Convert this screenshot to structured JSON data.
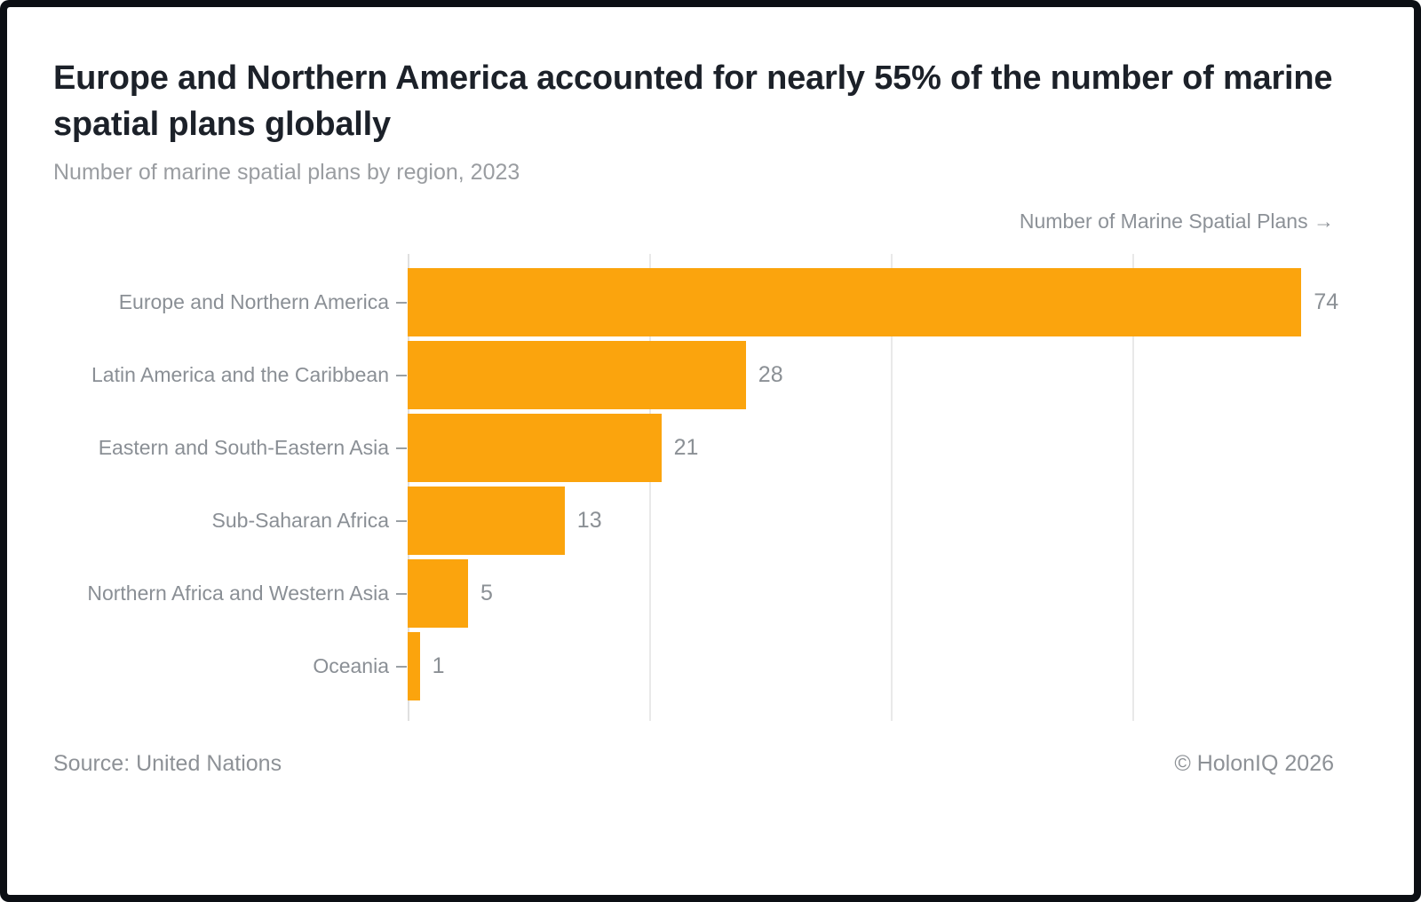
{
  "header": {
    "title": "Europe and Northern America accounted for nearly 55% of the number of marine spatial plans globally",
    "subtitle": "Number of marine spatial plans by region, 2023"
  },
  "chart_data": {
    "type": "bar",
    "orientation": "horizontal",
    "title": "Number of marine spatial plans by region, 2023",
    "axis_label": "Number of Marine Spatial Plans →",
    "categories": [
      "Europe and Northern America",
      "Latin America and the Caribbean",
      "Eastern and South-Eastern Asia",
      "Sub-Saharan Africa",
      "Northern Africa and Western Asia",
      "Oceania"
    ],
    "values": [
      74,
      28,
      21,
      13,
      5,
      1
    ],
    "xlim": [
      0,
      80
    ],
    "gridline_values": [
      20,
      40,
      60
    ],
    "grid": true,
    "data_labels": true,
    "legend": "none"
  },
  "footer": {
    "source": "Source: United Nations",
    "copyright": "© HolonIQ 2026"
  },
  "colors": {
    "accent": "#FBA40D",
    "title_text": "#1C2129",
    "label_text": "#8A8F95",
    "gridline": "#E9E9E9",
    "frame": "#0C0F14",
    "card_bg": "#FFFFFF"
  }
}
